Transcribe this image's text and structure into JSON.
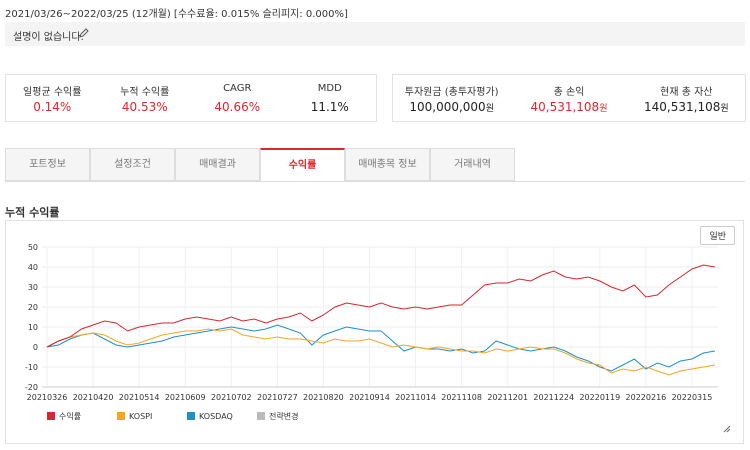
{
  "header": {
    "period": "2021/03/26~2022/03/25 (12개월) [수수료율: 0.015% 슬리피지: 0.000%]"
  },
  "description": {
    "text": "설명이 없습니다."
  },
  "stats": [
    {
      "label": "일평균 수익률",
      "value": "0.14%",
      "color": "#e0262c"
    },
    {
      "label": "누적 수익률",
      "value": "40.53%",
      "color": "#e0262c"
    },
    {
      "label": "CAGR",
      "value": "40.66%",
      "color": "#e0262c"
    },
    {
      "label": "MDD",
      "value": "11.1%",
      "color": "#222222"
    }
  ],
  "assets": [
    {
      "label": "투자원금 (총투자평가)",
      "value": "100,000,000",
      "unit": "원",
      "color": "#222222"
    },
    {
      "label": "총 손익",
      "value": "40,531,108",
      "unit": "원",
      "color": "#e0262c"
    },
    {
      "label": "현재 총 자산",
      "value": "140,531,108",
      "unit": "원",
      "color": "#222222"
    }
  ],
  "tabs": [
    "포트정보",
    "설정조건",
    "매매결과",
    "수익률",
    "매매종목 정보",
    "거래내역"
  ],
  "active_tab": 3,
  "section_title": "누적 수익률",
  "chart_data": {
    "type": "line",
    "button": "일반",
    "categories": [
      "20210326",
      null,
      null,
      null,
      "20210420",
      null,
      null,
      null,
      "20210514",
      null,
      null,
      null,
      "20210609",
      null,
      null,
      null,
      "20210702",
      null,
      null,
      null,
      "20210727",
      null,
      null,
      null,
      "20210820",
      null,
      null,
      null,
      "20210914",
      null,
      null,
      null,
      "20211014",
      null,
      null,
      null,
      "20211108",
      null,
      null,
      null,
      "20211201",
      null,
      null,
      null,
      "20211224",
      null,
      null,
      null,
      "20220119",
      null,
      null,
      null,
      "20220216",
      null,
      null,
      null,
      "20220315",
      null,
      null
    ],
    "series": [
      {
        "name": "수익률",
        "color": "#d6262f",
        "values": [
          0,
          3,
          5,
          9,
          11,
          13,
          12,
          8,
          10,
          11,
          12,
          12,
          14,
          15,
          14,
          13,
          15,
          13,
          14,
          12,
          14,
          15,
          17,
          13,
          16,
          20,
          22,
          21,
          20,
          22,
          20,
          19,
          20,
          19,
          20,
          21,
          21,
          26,
          31,
          32,
          32,
          34,
          33,
          36,
          38,
          35,
          34,
          35,
          33,
          30,
          28,
          31,
          25,
          26,
          31,
          35,
          39,
          41,
          40
        ]
      },
      {
        "name": "KOSPI",
        "color": "#f5a623",
        "values": [
          0,
          3,
          5,
          6,
          7,
          6,
          3,
          1,
          2,
          4,
          6,
          7,
          8,
          8,
          9,
          8,
          9,
          6,
          5,
          4,
          5,
          4,
          4,
          3,
          2,
          4,
          3,
          3,
          4,
          2,
          0,
          1,
          0,
          -1,
          0,
          -1,
          -2,
          -2,
          -3,
          -1,
          -2,
          -1,
          0,
          -1,
          -1,
          -3,
          -6,
          -8,
          -9,
          -13,
          -11,
          -12,
          -10,
          -12,
          -14,
          -12,
          -11,
          -10,
          -9
        ]
      },
      {
        "name": "KOSDAQ",
        "color": "#1f8fc9",
        "values": [
          0,
          1,
          4,
          6,
          7,
          4,
          1,
          0,
          1,
          2,
          3,
          5,
          6,
          7,
          8,
          9,
          10,
          9,
          8,
          9,
          11,
          9,
          7,
          1,
          6,
          8,
          10,
          9,
          8,
          8,
          3,
          -2,
          0,
          -1,
          -1,
          -2,
          -1,
          -3,
          -2,
          3,
          1,
          -1,
          -2,
          -1,
          0,
          -2,
          -5,
          -7,
          -10,
          -12,
          -9,
          -6,
          -11,
          -8,
          -10,
          -7,
          -6,
          -3,
          -2
        ]
      }
    ],
    "markers": [
      {
        "name": "전략변경",
        "color": "#bbbbbb"
      }
    ],
    "ylim": [
      -20,
      50
    ],
    "yticks": [
      -20,
      -10,
      0,
      10,
      20,
      30,
      40,
      50
    ],
    "grid": true
  }
}
